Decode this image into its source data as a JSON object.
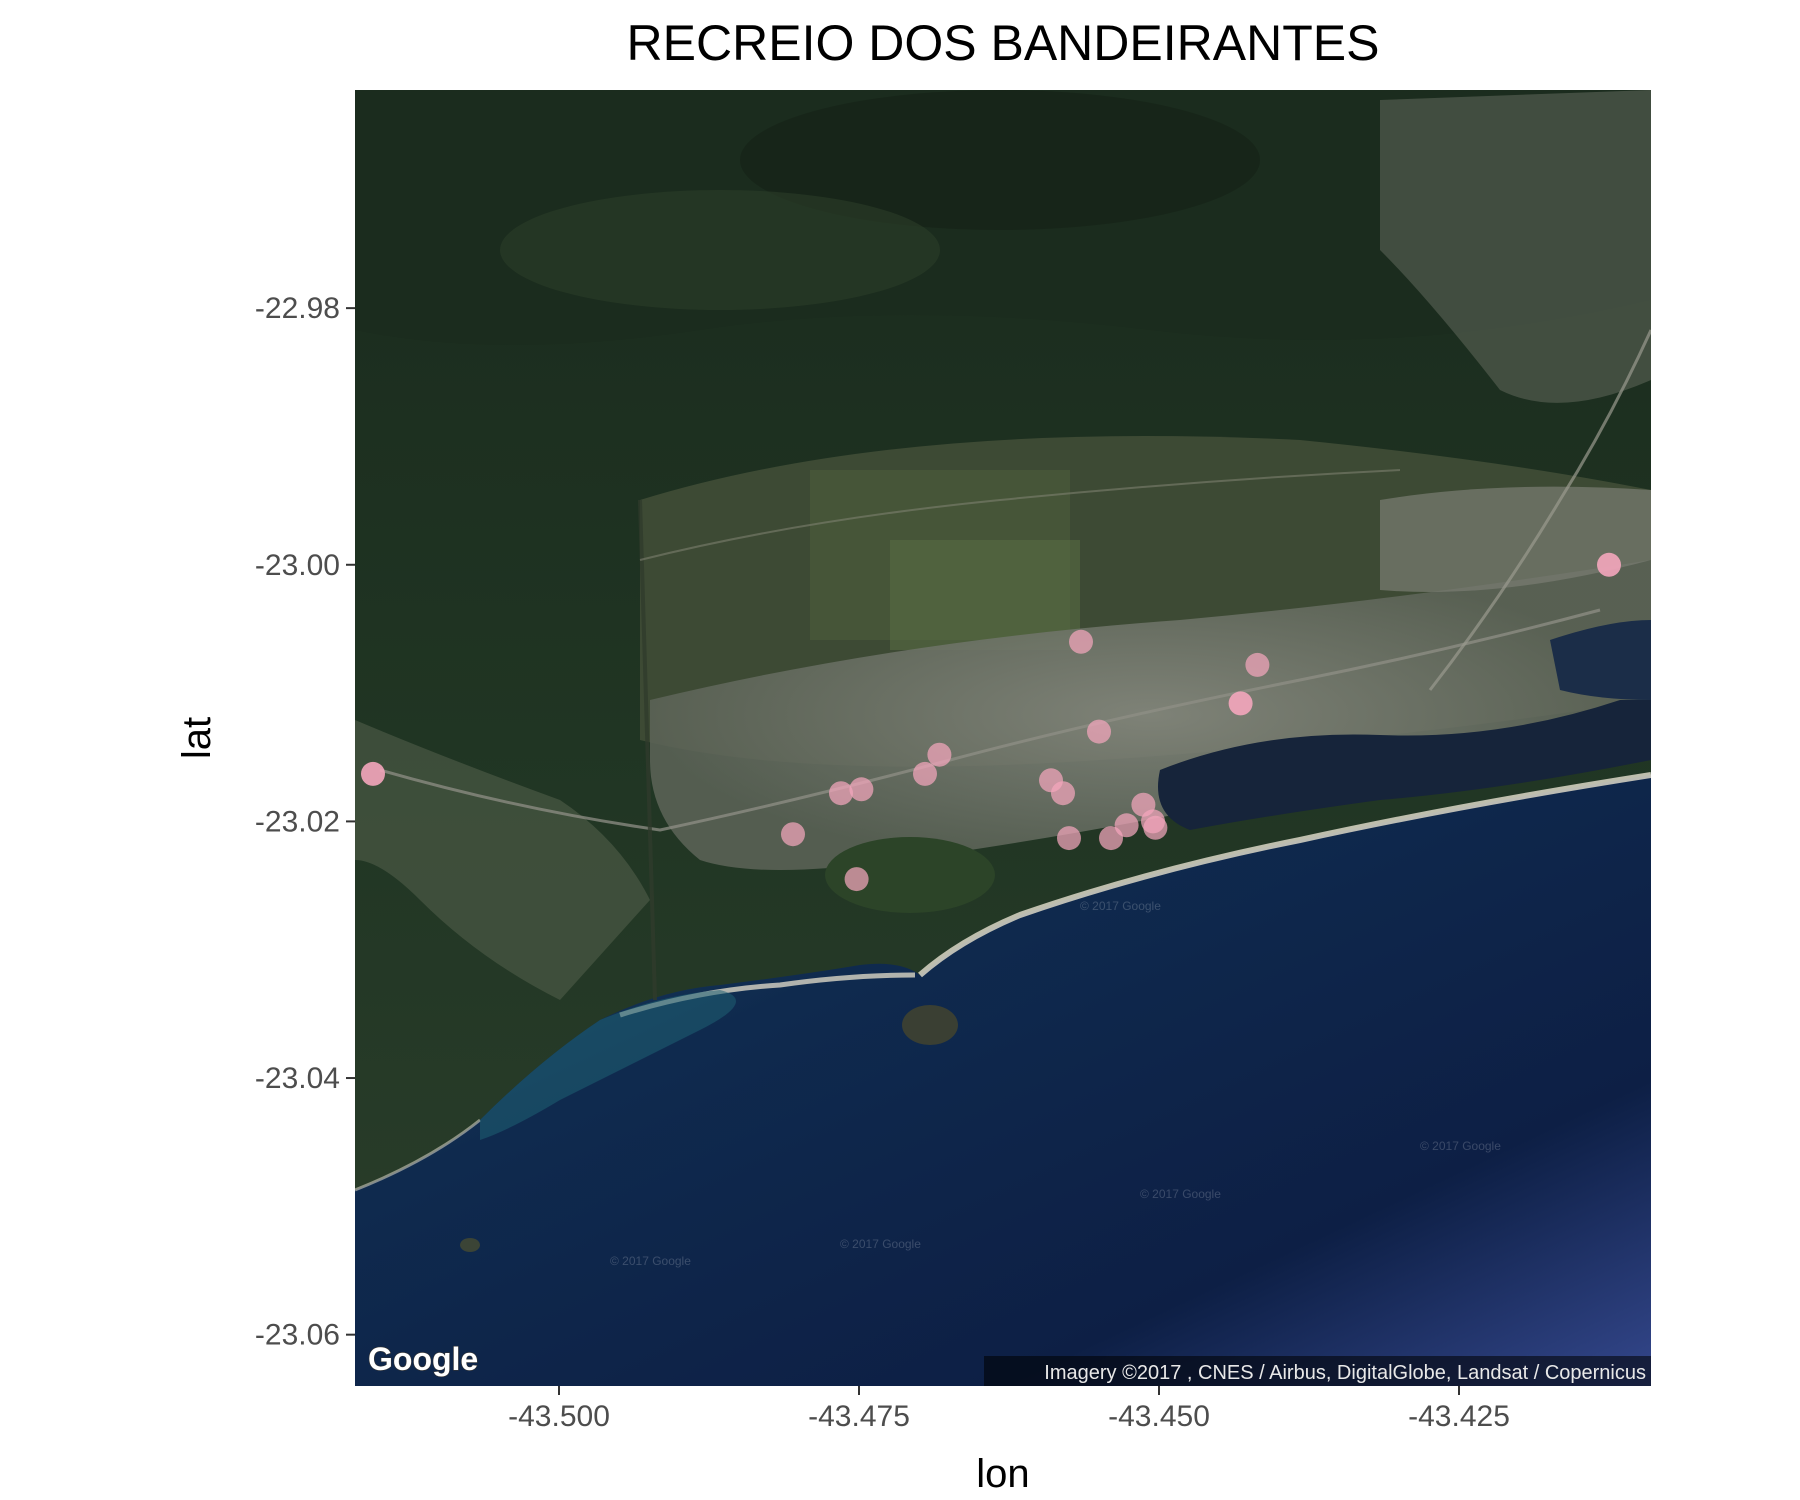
{
  "title": "RECREIO DOS BANDEIRANTES",
  "chart_data": {
    "type": "scatter",
    "basemap": "satellite",
    "title": "RECREIO DOS BANDEIRANTES",
    "xlabel": "lon",
    "ylabel": "lat",
    "xlim": [
      -43.517,
      -43.409
    ],
    "ylim": [
      -23.064,
      -22.963
    ],
    "x_ticks": [
      -43.5,
      -43.475,
      -43.45,
      -43.425
    ],
    "x_tick_labels": [
      "-43.500",
      "-43.475",
      "-43.450",
      "-43.425"
    ],
    "y_ticks": [
      -22.98,
      -23.0,
      -23.02,
      -23.04,
      -23.06
    ],
    "y_tick_labels": [
      "-22.98",
      "-23.00",
      "-23.02",
      "-23.04",
      "-23.06"
    ],
    "point_color": "#f4a6bd",
    "points": [
      {
        "lon": -43.5155,
        "lat": -23.0163
      },
      {
        "lon": -43.4125,
        "lat": -23.0
      },
      {
        "lon": -43.4805,
        "lat": -23.021
      },
      {
        "lon": -43.4765,
        "lat": -23.0178
      },
      {
        "lon": -43.4748,
        "lat": -23.0175
      },
      {
        "lon": -43.4752,
        "lat": -23.0245
      },
      {
        "lon": -43.4695,
        "lat": -23.0163
      },
      {
        "lon": -43.4683,
        "lat": -23.0148
      },
      {
        "lon": -43.459,
        "lat": -23.0168
      },
      {
        "lon": -43.458,
        "lat": -23.0178
      },
      {
        "lon": -43.4575,
        "lat": -23.0213
      },
      {
        "lon": -43.4565,
        "lat": -23.006
      },
      {
        "lon": -43.455,
        "lat": -23.013
      },
      {
        "lon": -43.454,
        "lat": -23.0213
      },
      {
        "lon": -43.4527,
        "lat": -23.0203
      },
      {
        "lon": -43.4513,
        "lat": -23.0187
      },
      {
        "lon": -43.4505,
        "lat": -23.02
      },
      {
        "lon": -43.4503,
        "lat": -23.0205
      },
      {
        "lon": -43.4432,
        "lat": -23.0108
      },
      {
        "lon": -43.4418,
        "lat": -23.0078
      }
    ]
  },
  "attribution": "Imagery ©2017 , CNES / Airbus, DigitalGlobe, Landsat / Copernicus",
  "logo": "Google",
  "watermark": "© 2017 Google"
}
